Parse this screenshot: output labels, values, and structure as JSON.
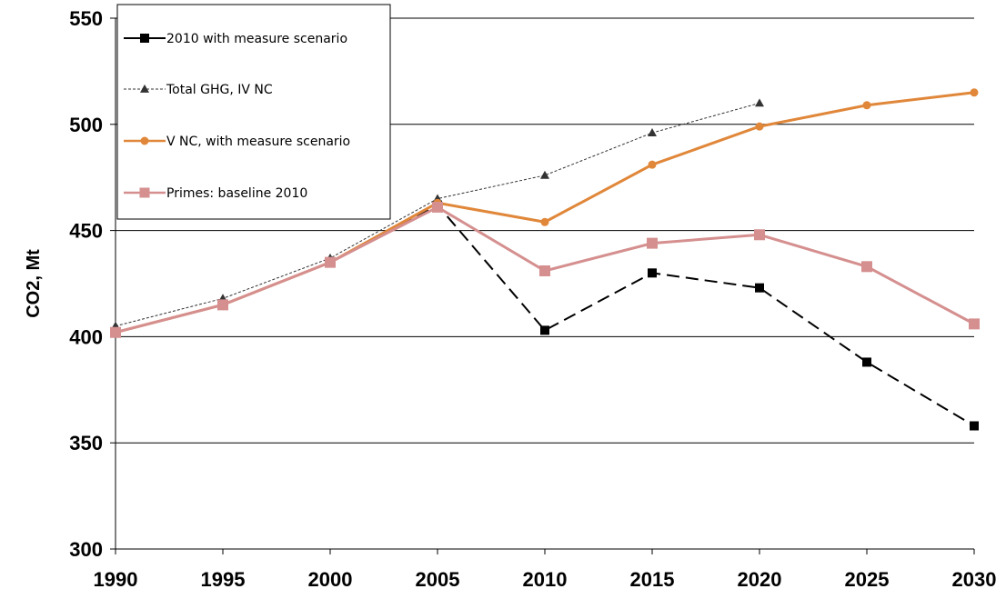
{
  "chart_data": {
    "type": "line",
    "title": "",
    "xlabel": "",
    "ylabel": "CO2, Mt",
    "x": [
      1990,
      1995,
      2000,
      2005,
      2010,
      2015,
      2020,
      2025,
      2030
    ],
    "x_tick_labels": [
      "1990",
      "1995",
      "2000",
      "2005",
      "2010",
      "2015",
      "2020",
      "2025",
      "2030"
    ],
    "ylim": [
      300,
      550
    ],
    "y_ticks": [
      300,
      350,
      400,
      450,
      500,
      550
    ],
    "y_tick_labels": [
      "300",
      "350",
      "400",
      "450",
      "500",
      "550"
    ],
    "grid": "horizontal",
    "legend_position": "top-left",
    "series": [
      {
        "name": "2010 with measure scenario",
        "color": "#000000",
        "line_style": "dashed",
        "marker": "square",
        "values": [
          402,
          415,
          435,
          462,
          403,
          430,
          423,
          388,
          358
        ]
      },
      {
        "name": "Total GHG, IV  NC",
        "color": "#333333",
        "line_style": "dotted-thin",
        "marker": "triangle",
        "values": [
          405,
          418,
          437,
          465,
          476,
          496,
          510,
          null,
          null
        ]
      },
      {
        "name": "V NC, with measure scenario",
        "color": "#E0873A",
        "line_style": "solid",
        "marker": "circle",
        "values": [
          402,
          415,
          435,
          463,
          454,
          481,
          499,
          509,
          515
        ]
      },
      {
        "name": "Primes: baseline 2010",
        "color": "#D58F8F",
        "line_style": "solid",
        "marker": "square",
        "values": [
          402,
          415,
          435,
          461,
          431,
          444,
          448,
          433,
          406
        ]
      }
    ]
  }
}
